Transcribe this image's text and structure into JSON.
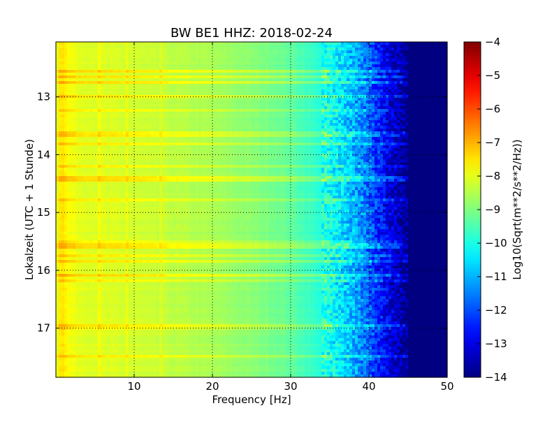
{
  "chart_data": {
    "type": "heatmap",
    "title": "BW BE1 HHZ: 2018-02-24",
    "xlabel": "Frequency [Hz]",
    "ylabel": "Lokalzeit (UTC + 1 Stunde)",
    "xlim": [
      0,
      50
    ],
    "ylim": [
      17.85,
      12.05
    ],
    "x_ticks": [
      10,
      20,
      30,
      40,
      50
    ],
    "y_ticks": [
      13,
      14,
      15,
      16,
      17
    ],
    "grid": true,
    "colormap": "jet",
    "colorbar": {
      "label": "Log10(Sqrt(m**2/s**2/Hz))",
      "range": [
        -14,
        -4
      ],
      "ticks": [
        -4,
        -5,
        -6,
        -7,
        -8,
        -9,
        -10,
        -11,
        -12,
        -13,
        -14
      ]
    },
    "frequency_profile": {
      "frequency_hz": [
        0,
        0.6,
        1,
        1.5,
        3,
        6,
        10,
        15,
        20,
        25,
        28,
        30,
        32,
        34,
        35,
        36,
        37,
        38,
        39,
        40,
        41,
        42,
        43,
        44,
        45,
        50
      ],
      "log10_psd": [
        -8.2,
        -7.4,
        -7.5,
        -7.8,
        -8.0,
        -8.1,
        -8.2,
        -8.4,
        -8.6,
        -8.9,
        -9.1,
        -9.3,
        -9.6,
        -9.9,
        -10.1,
        -10.4,
        -10.7,
        -11.0,
        -11.4,
        -11.8,
        -12.3,
        -12.8,
        -13.2,
        -13.5,
        -14.0,
        -14.0
      ]
    },
    "notes": [
      "Spectral level is roughly constant over time; brighter horizontal streaks at scattered times.",
      "Values near 1 Hz are highest (~ -7.5); above ~45 Hz values saturate at -14."
    ]
  }
}
